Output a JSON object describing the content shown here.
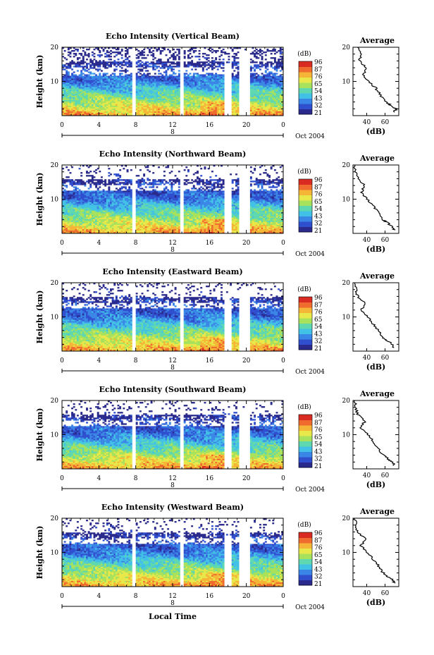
{
  "colors": [
    "#2a2a8c",
    "#2f4fcf",
    "#3a86e6",
    "#41c1e6",
    "#5fd8b0",
    "#a8e25c",
    "#e8e84a",
    "#f5b637",
    "#ef6b2e",
    "#d92b22"
  ],
  "colorbar": {
    "title": "(dB)",
    "labels": [
      "96",
      "87",
      "76",
      "65",
      "54",
      "43",
      "32",
      "21"
    ]
  },
  "profile_title": "Average",
  "profile_xlabel": "(dB)",
  "profile_xticks": [
    "40",
    "60"
  ],
  "xlabel": "Local Time",
  "date_label": "Oct 2004",
  "date_day": "8",
  "ylabel": "Height (km)",
  "yticks": [
    "10",
    "20"
  ],
  "xticks": [
    "0",
    "4",
    "8",
    "12",
    "16",
    "20",
    "0"
  ],
  "chart_data": [
    {
      "type": "heatmap",
      "title": "Echo Intensity (Vertical Beam)",
      "ylabel": "Height (km)",
      "xlim": [
        0,
        24
      ],
      "ylim": [
        0,
        20
      ],
      "colorbar_range": [
        21,
        96
      ],
      "gaps_hours": [
        7.8,
        13.0,
        17.5,
        18.3,
        19.7,
        20.1
      ],
      "profile": {
        "title": "Average",
        "xlabel": "(dB)",
        "height_km": [
          1,
          2,
          3,
          4,
          6,
          8,
          10,
          12,
          14,
          16,
          18,
          20
        ],
        "db": [
          70,
          72,
          66,
          62,
          55,
          50,
          42,
          36,
          40,
          32,
          35,
          30
        ]
      }
    },
    {
      "type": "heatmap",
      "title": "Echo Intensity (Northward Beam)",
      "ylabel": "Height (km)",
      "xlim": [
        0,
        24
      ],
      "ylim": [
        0,
        20
      ],
      "colorbar_range": [
        21,
        96
      ],
      "gaps_hours": [
        7.8,
        13.0,
        17.5,
        18.3,
        19.7,
        20.1
      ],
      "profile": {
        "title": "Average",
        "xlabel": "(dB)",
        "height_km": [
          1,
          2,
          3,
          4,
          6,
          8,
          10,
          12,
          14,
          16,
          18,
          20
        ],
        "db": [
          70,
          68,
          63,
          58,
          53,
          47,
          41,
          34,
          38,
          30,
          28,
          27
        ]
      }
    },
    {
      "type": "heatmap",
      "title": "Echo Intensity (Eastward Beam)",
      "ylabel": "Height (km)",
      "xlim": [
        0,
        24
      ],
      "ylim": [
        0,
        20
      ],
      "colorbar_range": [
        21,
        96
      ],
      "gaps_hours": [
        7.8,
        13.0,
        17.5,
        18.3,
        19.7,
        20.1
      ],
      "profile": {
        "title": "Average",
        "xlabel": "(dB)",
        "height_km": [
          1,
          2,
          3,
          4,
          6,
          8,
          10,
          12,
          14,
          16,
          18,
          20
        ],
        "db": [
          70,
          68,
          63,
          58,
          53,
          47,
          41,
          34,
          38,
          30,
          28,
          27
        ]
      }
    },
    {
      "type": "heatmap",
      "title": "Echo Intensity (Southward Beam)",
      "ylabel": "Height (km)",
      "xlim": [
        0,
        24
      ],
      "ylim": [
        0,
        20
      ],
      "colorbar_range": [
        21,
        96
      ],
      "gaps_hours": [
        7.8,
        13.0,
        17.5,
        18.3,
        19.7,
        20.1
      ],
      "profile": {
        "title": "Average",
        "xlabel": "(dB)",
        "height_km": [
          1,
          2,
          3,
          4,
          6,
          8,
          10,
          12,
          14,
          16,
          18,
          20
        ],
        "db": [
          70,
          68,
          63,
          58,
          53,
          47,
          41,
          34,
          38,
          30,
          28,
          27
        ]
      }
    },
    {
      "type": "heatmap",
      "title": "Echo Intensity (Westward Beam)",
      "ylabel": "Height (km)",
      "xlim": [
        0,
        24
      ],
      "ylim": [
        0,
        20
      ],
      "colorbar_range": [
        21,
        96
      ],
      "gaps_hours": [
        7.8,
        13.0,
        17.5,
        18.3,
        19.7,
        20.1
      ],
      "profile": {
        "title": "Average",
        "xlabel": "(dB)",
        "height_km": [
          1,
          2,
          3,
          4,
          6,
          8,
          10,
          12,
          14,
          16,
          18,
          20
        ],
        "db": [
          70,
          68,
          63,
          58,
          53,
          47,
          41,
          34,
          38,
          30,
          28,
          27
        ]
      }
    }
  ]
}
